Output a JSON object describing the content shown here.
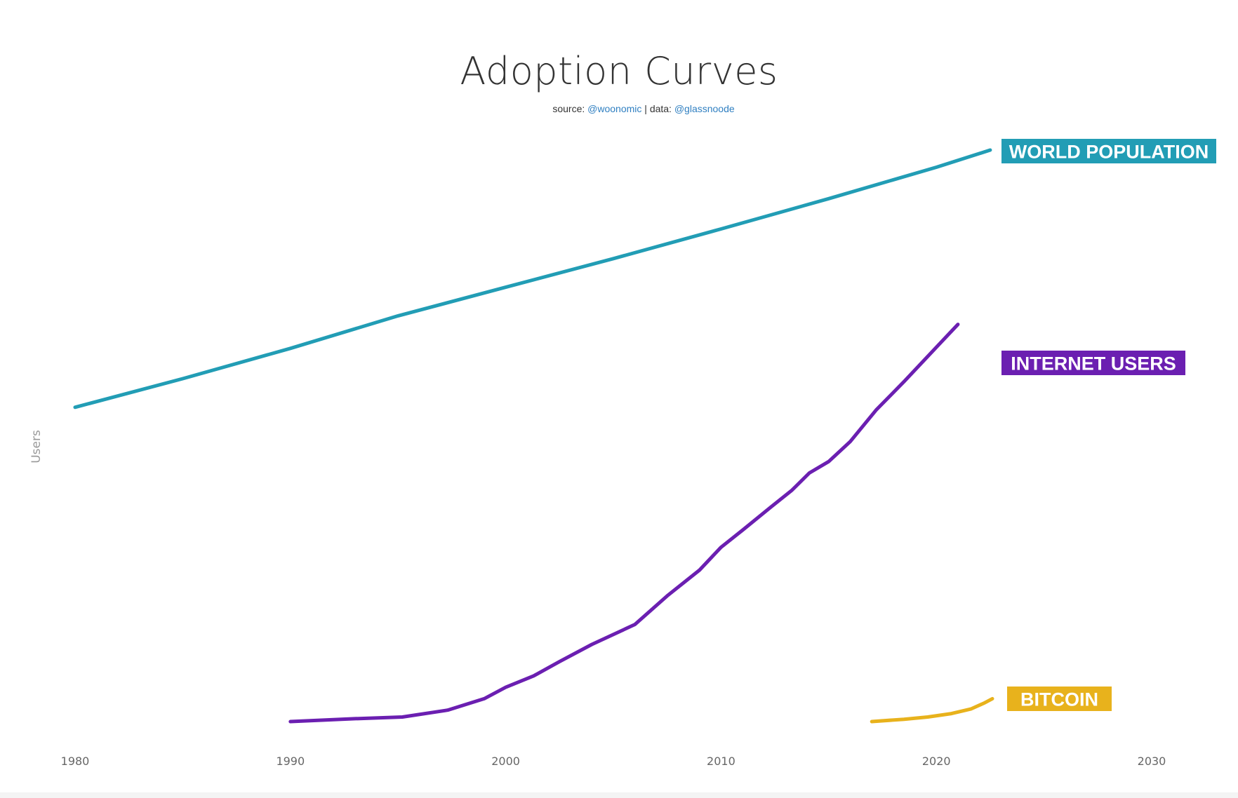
{
  "title": "Adoption Curves",
  "subtitle": {
    "source_label": "source:",
    "source_handle": "@woonomic",
    "separator": "|",
    "data_label": "data:",
    "data_handle": "@glassnoode"
  },
  "colors": {
    "world_population": "#229db5",
    "internet_users": "#6b1fb1",
    "bitcoin": "#e8b21c",
    "link": "#2f7fc1"
  },
  "chart_data": {
    "type": "line",
    "title": "Adoption Curves",
    "xlabel": "",
    "ylabel": "Users",
    "xlim": [
      1980,
      2030
    ],
    "ylim": [
      0,
      100
    ],
    "x_ticks": [
      "1980",
      "1990",
      "2000",
      "2010",
      "2020",
      "2030"
    ],
    "y_scale": "unlabeled",
    "grid": false,
    "legend": "inline labels at line ends",
    "series": [
      {
        "name": "WORLD POPULATION",
        "color": "#229db5",
        "points": [
          [
            1980,
            55.0
          ],
          [
            1985,
            60.0
          ],
          [
            1990,
            65.3
          ],
          [
            1995,
            71.0
          ],
          [
            2000,
            76.0
          ],
          [
            2005,
            81.0
          ],
          [
            2010,
            86.2
          ],
          [
            2015,
            91.5
          ],
          [
            2020,
            97.0
          ],
          [
            2022.5,
            100.0
          ]
        ]
      },
      {
        "name": "INTERNET USERS",
        "color": "#6b1fb1",
        "points": [
          [
            1990,
            0.0
          ],
          [
            1993,
            0.5
          ],
          [
            1995.2,
            0.8
          ],
          [
            1997.3,
            2.0
          ],
          [
            1999,
            4.0
          ],
          [
            2000,
            6.0
          ],
          [
            2001.3,
            8.0
          ],
          [
            2002.5,
            10.5
          ],
          [
            2004,
            13.5
          ],
          [
            2006,
            17.0
          ],
          [
            2007.5,
            22.0
          ],
          [
            2009,
            26.5
          ],
          [
            2010,
            30.5
          ],
          [
            2011,
            33.5
          ],
          [
            2012.3,
            37.5
          ],
          [
            2013.3,
            40.5
          ],
          [
            2014.1,
            43.5
          ],
          [
            2015,
            45.5
          ],
          [
            2016,
            49.0
          ],
          [
            2017.2,
            54.5
          ],
          [
            2018.5,
            59.5
          ],
          [
            2020,
            65.5
          ],
          [
            2021,
            69.5
          ]
        ]
      },
      {
        "name": "BITCOIN",
        "color": "#e8b21c",
        "points": [
          [
            2017,
            0.0
          ],
          [
            2018.5,
            0.4
          ],
          [
            2019.6,
            0.8
          ],
          [
            2020.7,
            1.4
          ],
          [
            2021.6,
            2.2
          ],
          [
            2022.2,
            3.2
          ],
          [
            2022.6,
            4.0
          ]
        ]
      }
    ]
  }
}
